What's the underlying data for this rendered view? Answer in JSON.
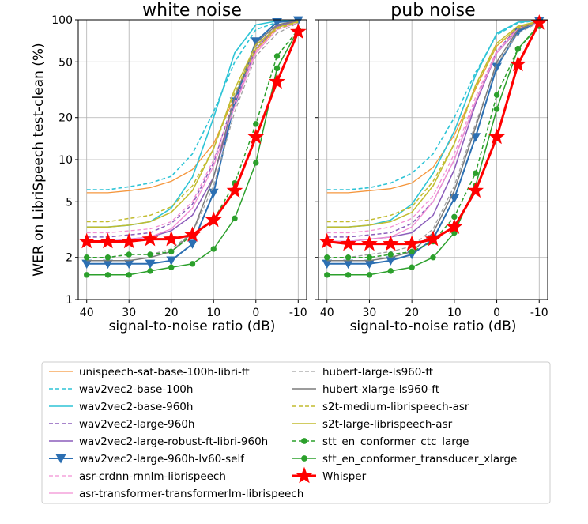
{
  "chart_data": [
    {
      "type": "line",
      "title": "white noise",
      "xlabel": "signal-to-noise ratio (dB)",
      "ylabel": "WER on LibriSpeech test-clean (%)",
      "yscale": "log",
      "ylim": [
        1,
        100
      ],
      "xlim": [
        42,
        -12
      ],
      "x": [
        40,
        35,
        30,
        25,
        20,
        15,
        10,
        5,
        0,
        -5,
        -10
      ],
      "x_ticks": [
        40,
        30,
        20,
        10,
        0,
        -10
      ],
      "x_tick_labels": [
        "40",
        "30",
        "20",
        "10",
        "0",
        "-10"
      ],
      "y_ticks": [
        1,
        2,
        5,
        10,
        20,
        50,
        100
      ],
      "y_tick_labels": [
        "1",
        "2",
        "5",
        "10",
        "20",
        "50",
        "100"
      ],
      "grid": true,
      "series": [
        {
          "name": "unispeech-sat-base-100h-libri-ft",
          "color": "#f5963c",
          "style": "solid",
          "width": 1.3,
          "marker": "none",
          "values": [
            5.8,
            5.8,
            6.0,
            6.3,
            7.0,
            8.5,
            13,
            28,
            60,
            88,
            97
          ]
        },
        {
          "name": "wav2vec2-base-100h",
          "color": "#2ec4d6",
          "style": "dashed",
          "width": 1.6,
          "marker": "none",
          "values": [
            6.1,
            6.1,
            6.4,
            6.8,
            7.6,
            11,
            22,
            50,
            85,
            96,
            99
          ]
        },
        {
          "name": "wav2vec2-base-960h",
          "color": "#2ec4d6",
          "style": "solid",
          "width": 1.6,
          "marker": "none",
          "values": [
            3.3,
            3.3,
            3.4,
            3.6,
            4.5,
            7.5,
            20,
            58,
            92,
            98,
            99
          ]
        },
        {
          "name": "wav2vec2-large-960h",
          "color": "#8c5dbb",
          "style": "dashed",
          "width": 1.5,
          "marker": "none",
          "values": [
            2.8,
            2.8,
            2.9,
            3.0,
            3.5,
            4.8,
            9.5,
            28,
            65,
            90,
            97
          ]
        },
        {
          "name": "wav2vec2-large-robust-ft-libri-960h",
          "color": "#8c5dbb",
          "style": "solid",
          "width": 1.5,
          "marker": "none",
          "values": [
            2.6,
            2.6,
            2.7,
            2.8,
            3.1,
            4.0,
            7.5,
            25,
            62,
            90,
            98
          ]
        },
        {
          "name": "wav2vec2-large-960h-lv60-self",
          "color": "#2c6fb2",
          "style": "solid",
          "width": 2.0,
          "marker": "triangle-down",
          "values": [
            1.8,
            1.8,
            1.8,
            1.8,
            1.9,
            2.5,
            5.8,
            26,
            70,
            96,
            99
          ]
        },
        {
          "name": "asr-crdnn-rnnlm-librispeech",
          "color": "#f28fd4",
          "style": "dashed",
          "width": 1.3,
          "marker": "none",
          "values": [
            3.0,
            3.0,
            3.1,
            3.2,
            3.6,
            5.0,
            10,
            26,
            60,
            85,
            95
          ]
        },
        {
          "name": "asr-transformer-transformerlm-librispeech",
          "color": "#f28fd4",
          "style": "solid",
          "width": 1.3,
          "marker": "none",
          "values": [
            2.6,
            2.6,
            2.7,
            2.8,
            3.2,
            4.5,
            9.0,
            24,
            58,
            85,
            95
          ]
        },
        {
          "name": "hubert-large-ls960-ft",
          "color": "#a0a0a0",
          "style": "dashed",
          "width": 1.3,
          "marker": "none",
          "values": [
            2.0,
            2.0,
            2.1,
            2.1,
            2.3,
            3.0,
            6.5,
            22,
            55,
            80,
            95
          ]
        },
        {
          "name": "hubert-xlarge-ls960-ft",
          "color": "#7b7b7b",
          "style": "solid",
          "width": 1.5,
          "marker": "none",
          "values": [
            1.9,
            1.9,
            1.9,
            2.0,
            2.2,
            3.0,
            7.5,
            28,
            68,
            92,
            99
          ]
        },
        {
          "name": "s2t-medium-librispeech-asr",
          "color": "#c2bc2f",
          "style": "dashed",
          "width": 1.5,
          "marker": "none",
          "values": [
            3.6,
            3.6,
            3.8,
            4.0,
            4.6,
            6.5,
            12,
            30,
            62,
            86,
            96
          ]
        },
        {
          "name": "s2t-large-librispeech-asr",
          "color": "#c2bc2f",
          "style": "solid",
          "width": 1.5,
          "marker": "none",
          "values": [
            3.3,
            3.3,
            3.4,
            3.6,
            4.2,
            6.0,
            12,
            32,
            66,
            88,
            97
          ]
        },
        {
          "name": "stt_en_conformer_ctc_large",
          "color": "#2ca02c",
          "style": "dashed",
          "width": 1.5,
          "marker": "circle",
          "values": [
            2.0,
            2.0,
            2.1,
            2.1,
            2.2,
            2.9,
            3.7,
            6.8,
            18,
            55,
            85
          ]
        },
        {
          "name": "stt_en_conformer_transducer_xlarge",
          "color": "#2ca02c",
          "style": "solid",
          "width": 1.5,
          "marker": "circle",
          "values": [
            1.5,
            1.5,
            1.5,
            1.6,
            1.7,
            1.8,
            2.3,
            3.8,
            9.5,
            45,
            85
          ]
        },
        {
          "name": "Whisper",
          "color": "#ff0000",
          "style": "solid",
          "width": 3.0,
          "marker": "star",
          "values": [
            2.6,
            2.6,
            2.6,
            2.7,
            2.7,
            2.9,
            3.7,
            6.0,
            14.5,
            36,
            82
          ]
        }
      ]
    },
    {
      "type": "line",
      "title": "pub noise",
      "xlabel": "signal-to-noise ratio (dB)",
      "ylabel": "",
      "yscale": "log",
      "ylim": [
        1,
        100
      ],
      "xlim": [
        42,
        -12
      ],
      "x": [
        40,
        35,
        30,
        25,
        20,
        15,
        10,
        5,
        0,
        -5,
        -10
      ],
      "x_ticks": [
        40,
        30,
        20,
        10,
        0,
        -10
      ],
      "x_tick_labels": [
        "40",
        "30",
        "20",
        "10",
        "0",
        "-10"
      ],
      "y_ticks": [
        1,
        2,
        5,
        10,
        20,
        50,
        100
      ],
      "y_tick_labels": [
        "",
        "",
        "",
        "",
        "",
        "",
        ""
      ],
      "grid": true,
      "series": [
        {
          "name": "unispeech-sat-base-100h-libri-ft",
          "color": "#f5963c",
          "style": "solid",
          "width": 1.3,
          "marker": "none",
          "values": [
            5.8,
            5.8,
            6.0,
            6.2,
            6.8,
            8.8,
            15,
            32,
            65,
            88,
            97
          ]
        },
        {
          "name": "wav2vec2-base-100h",
          "color": "#2ec4d6",
          "style": "dashed",
          "width": 1.6,
          "marker": "none",
          "values": [
            6.1,
            6.1,
            6.3,
            6.8,
            8.0,
            11,
            20,
            42,
            78,
            95,
            99
          ]
        },
        {
          "name": "wav2vec2-base-960h",
          "color": "#2ec4d6",
          "style": "solid",
          "width": 1.6,
          "marker": "none",
          "values": [
            3.3,
            3.3,
            3.4,
            3.7,
            4.8,
            8.0,
            16,
            40,
            80,
            96,
            99
          ]
        },
        {
          "name": "wav2vec2-large-960h",
          "color": "#8c5dbb",
          "style": "dashed",
          "width": 1.5,
          "marker": "none",
          "values": [
            2.8,
            2.8,
            2.9,
            3.0,
            3.5,
            5.0,
            10,
            26,
            60,
            88,
            97
          ]
        },
        {
          "name": "wav2vec2-large-robust-ft-libri-960h",
          "color": "#8c5dbb",
          "style": "solid",
          "width": 1.5,
          "marker": "none",
          "values": [
            2.6,
            2.6,
            2.7,
            2.8,
            3.0,
            4.0,
            8.5,
            25,
            58,
            85,
            97
          ]
        },
        {
          "name": "wav2vec2-large-960h-lv60-self",
          "color": "#2c6fb2",
          "style": "solid",
          "width": 2.0,
          "marker": "triangle-down",
          "values": [
            1.8,
            1.8,
            1.8,
            1.9,
            2.1,
            2.7,
            5.3,
            14.5,
            46,
            82,
            98
          ]
        },
        {
          "name": "asr-crdnn-rnnlm-librispeech",
          "color": "#f28fd4",
          "style": "dashed",
          "width": 1.3,
          "marker": "none",
          "values": [
            3.0,
            3.0,
            3.1,
            3.3,
            3.8,
            5.5,
            11,
            28,
            60,
            86,
            96
          ]
        },
        {
          "name": "asr-transformer-transformerlm-librispeech",
          "color": "#f28fd4",
          "style": "solid",
          "width": 1.3,
          "marker": "none",
          "values": [
            2.6,
            2.6,
            2.7,
            2.8,
            3.3,
            5.0,
            10,
            26,
            58,
            86,
            96
          ]
        },
        {
          "name": "hubert-large-ls960-ft",
          "color": "#a0a0a0",
          "style": "dashed",
          "width": 1.3,
          "marker": "none",
          "values": [
            2.0,
            2.0,
            2.1,
            2.2,
            2.4,
            3.2,
            6.5,
            18,
            48,
            80,
            96
          ]
        },
        {
          "name": "hubert-xlarge-ls960-ft",
          "color": "#7b7b7b",
          "style": "solid",
          "width": 1.5,
          "marker": "none",
          "values": [
            1.9,
            1.9,
            1.9,
            2.0,
            2.2,
            3.0,
            6.0,
            17,
            50,
            85,
            98
          ]
        },
        {
          "name": "s2t-medium-librispeech-asr",
          "color": "#c2bc2f",
          "style": "dashed",
          "width": 1.5,
          "marker": "none",
          "values": [
            3.6,
            3.6,
            3.7,
            4.0,
            4.6,
            7.0,
            13,
            33,
            65,
            88,
            97
          ]
        },
        {
          "name": "s2t-large-librispeech-asr",
          "color": "#c2bc2f",
          "style": "solid",
          "width": 1.5,
          "marker": "none",
          "values": [
            3.3,
            3.3,
            3.4,
            3.6,
            4.2,
            6.5,
            13,
            34,
            68,
            90,
            98
          ]
        },
        {
          "name": "stt_en_conformer_ctc_large",
          "color": "#2ca02c",
          "style": "dashed",
          "width": 1.5,
          "marker": "circle",
          "values": [
            2.0,
            2.0,
            2.0,
            2.1,
            2.2,
            2.6,
            3.9,
            8.0,
            29,
            62,
            90
          ]
        },
        {
          "name": "stt_en_conformer_transducer_xlarge",
          "color": "#2ca02c",
          "style": "solid",
          "width": 1.5,
          "marker": "circle",
          "values": [
            1.5,
            1.5,
            1.5,
            1.6,
            1.7,
            2.0,
            3.0,
            6.5,
            23,
            62,
            92
          ]
        },
        {
          "name": "Whisper",
          "color": "#ff0000",
          "style": "solid",
          "width": 3.0,
          "marker": "star",
          "values": [
            2.6,
            2.5,
            2.5,
            2.5,
            2.5,
            2.7,
            3.3,
            6.0,
            14.5,
            48,
            95
          ]
        }
      ]
    }
  ],
  "legend": {
    "placement": "bottom",
    "columns": [
      [
        "unispeech-sat-base-100h-libri-ft",
        "wav2vec2-base-100h",
        "wav2vec2-base-960h",
        "wav2vec2-large-960h",
        "wav2vec2-large-robust-ft-libri-960h",
        "wav2vec2-large-960h-lv60-self",
        "asr-crdnn-rnnlm-librispeech",
        "asr-transformer-transformerlm-librispeech"
      ],
      [
        "hubert-large-ls960-ft",
        "hubert-xlarge-ls960-ft",
        "s2t-medium-librispeech-asr",
        "s2t-large-librispeech-asr",
        "stt_en_conformer_ctc_large",
        "stt_en_conformer_transducer_xlarge",
        "Whisper"
      ]
    ]
  }
}
